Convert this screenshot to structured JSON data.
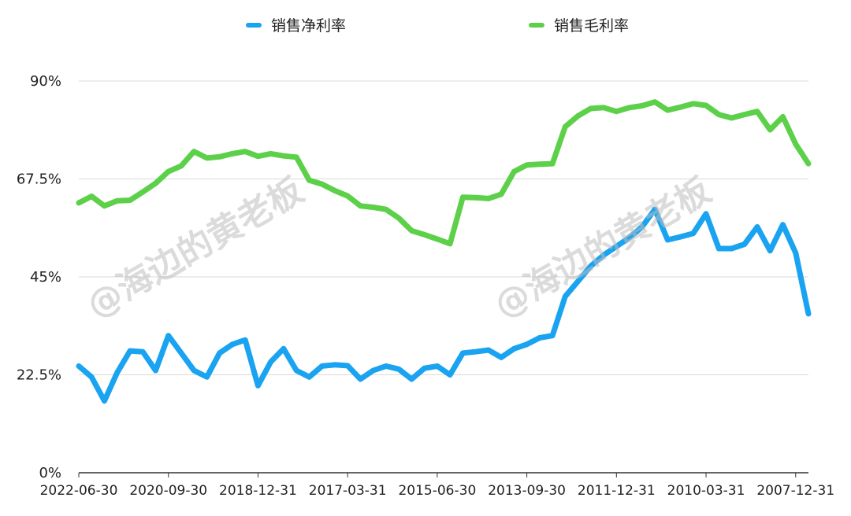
{
  "chart_data": {
    "type": "line",
    "title": "",
    "xlabel": "",
    "ylabel": "",
    "ylim": [
      0,
      90
    ],
    "y_ticks": [
      "0%",
      "22.5%",
      "45%",
      "67.5%",
      "90%"
    ],
    "y_tick_values": [
      0,
      22.5,
      45,
      67.5,
      90
    ],
    "x_tick_labels": [
      "2022-06-30",
      "2020-09-30",
      "2018-12-31",
      "2017-03-31",
      "2015-06-30",
      "2013-09-30",
      "2011-12-31",
      "2010-03-31",
      "2007-12-31"
    ],
    "x_tick_index": [
      0,
      7,
      14,
      21,
      28,
      35,
      42,
      49,
      56
    ],
    "legend_position": "top-center",
    "grid": true,
    "watermark": "@海边的黄老板",
    "series": [
      {
        "name": "销售净利率",
        "color": "#1AA3F0",
        "values": [
          24.5,
          22,
          16.5,
          23,
          28,
          27.8,
          23.5,
          31.5,
          27.5,
          23.5,
          22,
          27.5,
          29.5,
          30.5,
          20,
          25.5,
          28.5,
          23.5,
          22,
          24.5,
          24.8,
          24.6,
          21.5,
          23.5,
          24.5,
          23.8,
          21.5,
          24,
          24.5,
          22.5,
          27.5,
          27.8,
          28.2,
          26.5,
          28.5,
          29.5,
          31,
          31.5,
          40.5,
          44,
          47.5,
          50,
          52,
          54,
          56.5,
          60.5,
          53.5,
          54.2,
          55,
          59.5,
          51.5,
          51.5,
          52.5,
          56.5,
          51,
          57,
          50.5,
          36.5
        ]
      },
      {
        "name": "销售毛利率",
        "color": "#5DD04A",
        "values": [
          62,
          63.5,
          61.3,
          62.5,
          62.6,
          64.5,
          66.5,
          69.2,
          70.5,
          73.8,
          72.3,
          72.6,
          73.3,
          73.8,
          72.7,
          73.3,
          72.8,
          72.5,
          67.2,
          66.3,
          64.8,
          63.6,
          61.3,
          61,
          60.5,
          58.5,
          55.6,
          54.7,
          53.7,
          52.6,
          63.3,
          63.2,
          63,
          64,
          69.2,
          70.7,
          70.9,
          71,
          79.5,
          82,
          83.7,
          83.9,
          83,
          83.9,
          84.3,
          85.2,
          83.3,
          84,
          84.8,
          84.4,
          82.3,
          81.5,
          82.3,
          83,
          78.8,
          81.8,
          75.5,
          71
        ]
      }
    ]
  }
}
